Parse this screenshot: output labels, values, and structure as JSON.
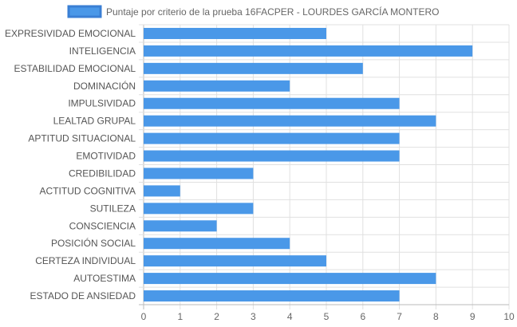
{
  "chart_data": {
    "type": "bar",
    "orientation": "horizontal",
    "categories": [
      "EXPRESIVIDAD EMOCIONAL",
      "INTELIGENCIA",
      "ESTABILIDAD EMOCIONAL",
      "DOMINACIÓN",
      "IMPULSIVIDAD",
      "LEALTAD GRUPAL",
      "APTITUD SITUACIONAL",
      "EMOTIVIDAD",
      "CREDIBILIDAD",
      "ACTITUD COGNITIVA",
      "SUTILEZA",
      "CONSCIENCIA",
      "POSICIÓN SOCIAL",
      "CERTEZA INDIVIDUAL",
      "AUTOESTIMA",
      "ESTADO DE ANSIEDAD"
    ],
    "series": [
      {
        "name": "Puntaje por criterio de la prueba 16FACPER - LOURDES GARCÍA MONTERO",
        "values": [
          5,
          9,
          6,
          4,
          7,
          8,
          7,
          7,
          3,
          1,
          3,
          2,
          4,
          5,
          8,
          7
        ],
        "color": "#4a98e8",
        "border_color": "#3a7fd4"
      }
    ],
    "xlim": [
      0,
      10
    ],
    "ticks": [
      "0",
      "1",
      "2",
      "3",
      "4",
      "5",
      "6",
      "7",
      "8",
      "9",
      "10"
    ],
    "grid": true,
    "legend_position": "top"
  }
}
